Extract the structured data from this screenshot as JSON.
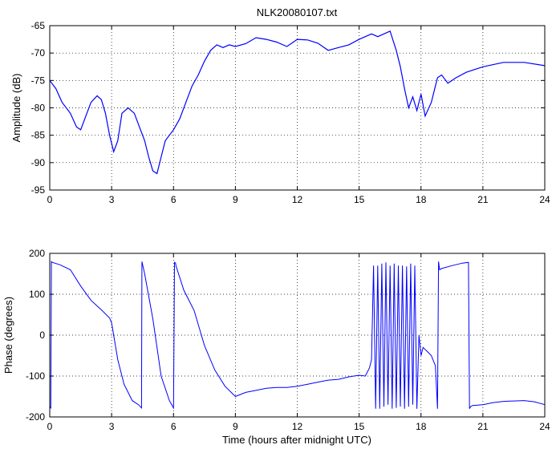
{
  "title": "NLK20080107.txt",
  "colors": {
    "line": "#0000ff",
    "axes": "#000000",
    "grid": "#000000",
    "background": "#ffffff"
  },
  "chart_data": [
    {
      "type": "line",
      "title": "NLK20080107.txt",
      "xlabel": "",
      "ylabel": "Amplitude (dB)",
      "xlim": [
        0,
        24
      ],
      "ylim": [
        -95,
        -65
      ],
      "xticks": [
        0,
        3,
        6,
        9,
        12,
        15,
        18,
        21,
        24
      ],
      "yticks": [
        -95,
        -90,
        -85,
        -80,
        -75,
        -70,
        -65
      ],
      "grid": true,
      "series": [
        {
          "name": "",
          "x": [
            0,
            0.3,
            0.6,
            1.0,
            1.3,
            1.5,
            1.7,
            2.0,
            2.3,
            2.5,
            2.7,
            2.9,
            3.1,
            3.3,
            3.5,
            3.8,
            4.1,
            4.4,
            4.6,
            4.8,
            5.0,
            5.2,
            5.4,
            5.6,
            5.8,
            6.0,
            6.3,
            6.6,
            6.9,
            7.2,
            7.5,
            7.8,
            8.1,
            8.4,
            8.7,
            9.0,
            9.5,
            10.0,
            10.5,
            11.0,
            11.5,
            12.0,
            12.5,
            13.0,
            13.5,
            14.0,
            14.5,
            15.0,
            15.3,
            15.6,
            15.9,
            16.2,
            16.5,
            16.8,
            17.0,
            17.2,
            17.4,
            17.6,
            17.8,
            18.0,
            18.2,
            18.5,
            18.8,
            19.0,
            19.3,
            19.7,
            20.2,
            21.0,
            22.0,
            23.0,
            24.0
          ],
          "y": [
            -75,
            -76.5,
            -79,
            -81,
            -83.5,
            -84,
            -82,
            -79,
            -77.8,
            -78.5,
            -81,
            -85,
            -88,
            -86,
            -81,
            -80,
            -81,
            -84,
            -86,
            -89,
            -91.5,
            -92,
            -89,
            -86,
            -85,
            -84,
            -82,
            -79,
            -76,
            -74,
            -71.5,
            -69.5,
            -68.5,
            -69,
            -68.5,
            -68.8,
            -68.3,
            -67.2,
            -67.5,
            -68,
            -68.8,
            -67.5,
            -67.6,
            -68.2,
            -69.5,
            -69,
            -68.5,
            -67.5,
            -67,
            -66.5,
            -67,
            -66.5,
            -66,
            -69.5,
            -72.5,
            -76.5,
            -80,
            -78,
            -80.5,
            -77.5,
            -81.5,
            -79,
            -74.5,
            -74,
            -75.5,
            -74.5,
            -73.5,
            -72.5,
            -71.7,
            -71.7,
            -72.3
          ]
        }
      ]
    },
    {
      "type": "line",
      "title": "",
      "xlabel": "Time (hours after midnight UTC)",
      "ylabel": "Phase (degrees)",
      "xlim": [
        0,
        24
      ],
      "ylim": [
        -200,
        200
      ],
      "xticks": [
        0,
        3,
        6,
        9,
        12,
        15,
        18,
        21,
        24
      ],
      "yticks": [
        -200,
        -100,
        0,
        100,
        200
      ],
      "grid": true,
      "series": [
        {
          "name": "",
          "x": [
            0,
            0.05,
            0.08,
            0.12,
            0.5,
            1.0,
            1.5,
            2.0,
            2.5,
            2.9,
            3.0,
            3.3,
            3.6,
            4.0,
            4.3,
            4.45,
            4.47,
            4.6,
            4.8,
            5.0,
            5.2,
            5.4,
            5.6,
            5.8,
            6.0,
            6.05,
            6.1,
            6.12,
            6.15,
            6.5,
            7.0,
            7.5,
            8.0,
            8.5,
            9.0,
            9.5,
            10.0,
            10.5,
            11.0,
            11.5,
            12.0,
            12.5,
            13.0,
            13.5,
            14.0,
            14.5,
            15.0,
            15.3,
            15.5,
            15.6,
            15.7,
            15.8,
            15.9,
            16.0,
            16.1,
            16.2,
            16.3,
            16.4,
            16.5,
            16.6,
            16.7,
            16.8,
            16.9,
            17.0,
            17.1,
            17.2,
            17.3,
            17.4,
            17.5,
            17.6,
            17.7,
            17.8,
            17.9,
            18.0,
            18.1,
            18.3,
            18.5,
            18.7,
            18.8,
            18.85,
            18.9,
            19.0,
            19.5,
            20.0,
            20.3,
            20.35,
            20.4,
            20.5,
            21.0,
            21.5,
            22.0,
            22.5,
            23.0,
            23.5,
            24.0
          ],
          "y": [
            -175,
            -178,
            180,
            178,
            172,
            160,
            120,
            85,
            62,
            42,
            30,
            -60,
            -120,
            -160,
            -170,
            -178,
            180,
            150,
            95,
            40,
            -30,
            -100,
            -130,
            -160,
            -178,
            178,
            176,
            170,
            165,
            110,
            60,
            -25,
            -85,
            -125,
            -150,
            -140,
            -135,
            -130,
            -128,
            -128,
            -125,
            -120,
            -115,
            -110,
            -108,
            -102,
            -98,
            -100,
            -80,
            -60,
            170,
            -180,
            170,
            -180,
            175,
            -175,
            178,
            -170,
            170,
            -180,
            175,
            -178,
            170,
            -175,
            170,
            -180,
            168,
            -175,
            175,
            -170,
            170,
            -180,
            0,
            -50,
            -30,
            -40,
            -50,
            -75,
            -180,
            180,
            160,
            163,
            170,
            176,
            178,
            -180,
            -175,
            -172,
            -170,
            -165,
            -162,
            -161,
            -160,
            -163,
            -170
          ]
        }
      ]
    }
  ]
}
